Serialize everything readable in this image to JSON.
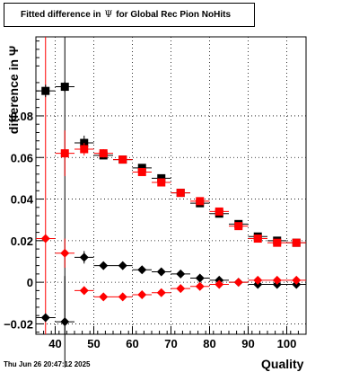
{
  "title": {
    "prefix": "Fitted difference in",
    "symbol": "Ψ",
    "suffix": "for Global Rec Pion NoHits"
  },
  "ylabel": "difference in Ψ",
  "xlabel": "Quality",
  "timestamp": "Thu Jun 26 20:47:12 2025",
  "colors": {
    "black": "#000000",
    "red": "#ff0000",
    "grid": "#000000"
  },
  "chart_data": {
    "type": "scatter",
    "title": "Fitted difference in Ψ for Global Rec Pion NoHits",
    "xlabel": "Quality",
    "ylabel": "difference in Ψ",
    "xlim": [
      35,
      105
    ],
    "ylim": [
      -0.025,
      0.118
    ],
    "xticks": [
      40,
      50,
      60,
      70,
      80,
      90,
      100
    ],
    "yticks": [
      -0.02,
      0,
      0.02,
      0.04,
      0.06,
      0.08
    ],
    "ytick_labels": [
      "−0.02",
      "0",
      "0.02",
      "0.04",
      "0.06",
      "0.08"
    ],
    "grid": true,
    "series": [
      {
        "marker": "square",
        "color": "#000000",
        "x": [
          37.5,
          42.5,
          47.5,
          52.5,
          57.5,
          62.5,
          67.5,
          72.5,
          77.5,
          82.5,
          87.5,
          92.5,
          97.5,
          102.5
        ],
        "y": [
          0.092,
          0.094,
          0.067,
          0.061,
          0.059,
          0.055,
          0.05,
          0.043,
          0.038,
          0.033,
          0.028,
          0.022,
          0.02,
          0.019
        ],
        "yerr": [
          0.003,
          0.0025,
          0.0035,
          0.001,
          0.001,
          0.001,
          0.001,
          0.001,
          0.001,
          0.001,
          0.001,
          0.001,
          0.001,
          0.001
        ]
      },
      {
        "marker": "square",
        "color": "#ff0000",
        "x": [
          37.5,
          42.5,
          47.5,
          52.5,
          57.5,
          62.5,
          67.5,
          72.5,
          77.5,
          82.5,
          87.5,
          92.5,
          97.5,
          102.5
        ],
        "y": [
          0.12,
          0.062,
          0.064,
          0.062,
          0.059,
          0.053,
          0.048,
          0.043,
          0.039,
          0.034,
          0.027,
          0.021,
          0.019,
          0.019
        ],
        "yerr": [
          0.0,
          0.011,
          0.003,
          0.002,
          0.0015,
          0.001,
          0.001,
          0.001,
          0.001,
          0.001,
          0.001,
          0.001,
          0.001,
          0.001
        ]
      },
      {
        "marker": "diamond",
        "color": "#000000",
        "x": [
          37.5,
          42.5,
          47.5,
          52.5,
          57.5,
          62.5,
          67.5,
          72.5,
          77.5,
          82.5,
          87.5,
          92.5,
          97.5,
          102.5
        ],
        "y": [
          -0.017,
          -0.019,
          0.012,
          0.008,
          0.008,
          0.006,
          0.005,
          0.004,
          0.002,
          0.001,
          0.0,
          -0.001,
          -0.001,
          -0.001
        ],
        "yerr": [
          0.0,
          0.022,
          0.003,
          0.001,
          0.001,
          0.001,
          0.001,
          0.001,
          0.001,
          0.001,
          0.001,
          0.001,
          0.001,
          0.001
        ]
      },
      {
        "marker": "diamond",
        "color": "#ff0000",
        "x": [
          37.5,
          42.5,
          47.5,
          52.5,
          57.5,
          62.5,
          67.5,
          72.5,
          77.5,
          82.5,
          87.5,
          92.5,
          97.5,
          102.5
        ],
        "y": [
          0.021,
          0.014,
          -0.004,
          -0.007,
          -0.007,
          -0.006,
          -0.005,
          -0.003,
          -0.002,
          -0.001,
          0.0,
          0.001,
          0.001,
          0.001
        ],
        "yerr": [
          0.0,
          0.007,
          0.002,
          0.001,
          0.001,
          0.001,
          0.001,
          0.001,
          0.001,
          0.001,
          0.001,
          0.001,
          0.001,
          0.001
        ]
      }
    ],
    "full_range_bars": [
      {
        "x": 37.5,
        "color": "#ff0000"
      },
      {
        "x": 42.5,
        "color": "#000000",
        "ymin": -0.025,
        "ymax": 0.118
      }
    ]
  }
}
